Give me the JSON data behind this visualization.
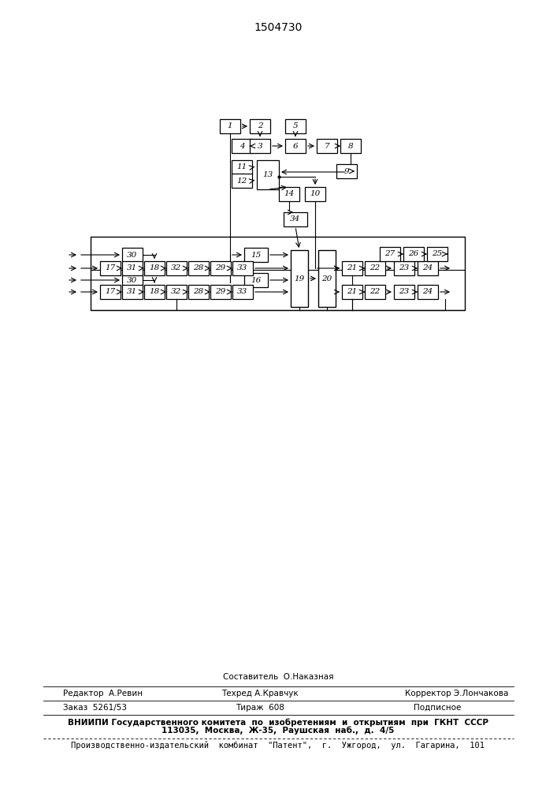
{
  "title": "1504730",
  "bg_color": "#ffffff",
  "footer": {
    "line1_center": "Составитель  О.Наказная",
    "line2_left": "Редактор  А.Ревин",
    "line2_center": "Техред А.Кравчук",
    "line2_right": "Корректор Э.Лончакова",
    "line3_left": "Заказ  5261/53",
    "line3_center": "Тираж  608",
    "line3_right": "Подписное",
    "line4": "ВНИИПИ Государственного комитета  по  изобретениям  и  открытиям  при  ГКНТ  СССР",
    "line5": "113035,  Москва,  Ж-35,  Раушская  наб.,  д.  4/5",
    "line6": "Производственно-издательский  комбинат  \"Патент\",  г.  Ужгород,  ул.  Гагарина,  101"
  }
}
